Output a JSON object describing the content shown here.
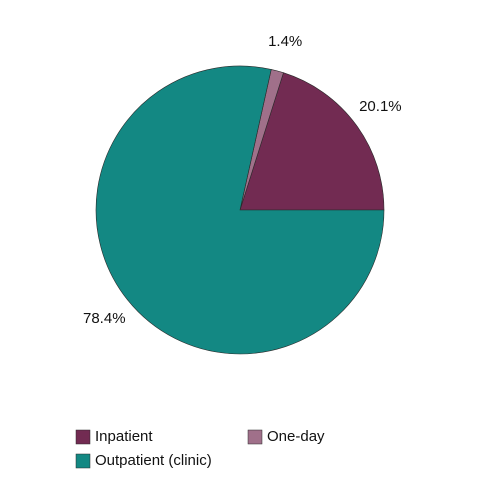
{
  "chart_data": {
    "type": "pie",
    "categories": [
      "Inpatient",
      "One-day",
      "Outpatient (clinic)"
    ],
    "values": [
      20.1,
      1.4,
      78.4
    ],
    "value_labels": [
      "20.1%",
      "1.4%",
      "78.4%"
    ],
    "colors": [
      "#722b52",
      "#a0708a",
      "#138883"
    ]
  }
}
